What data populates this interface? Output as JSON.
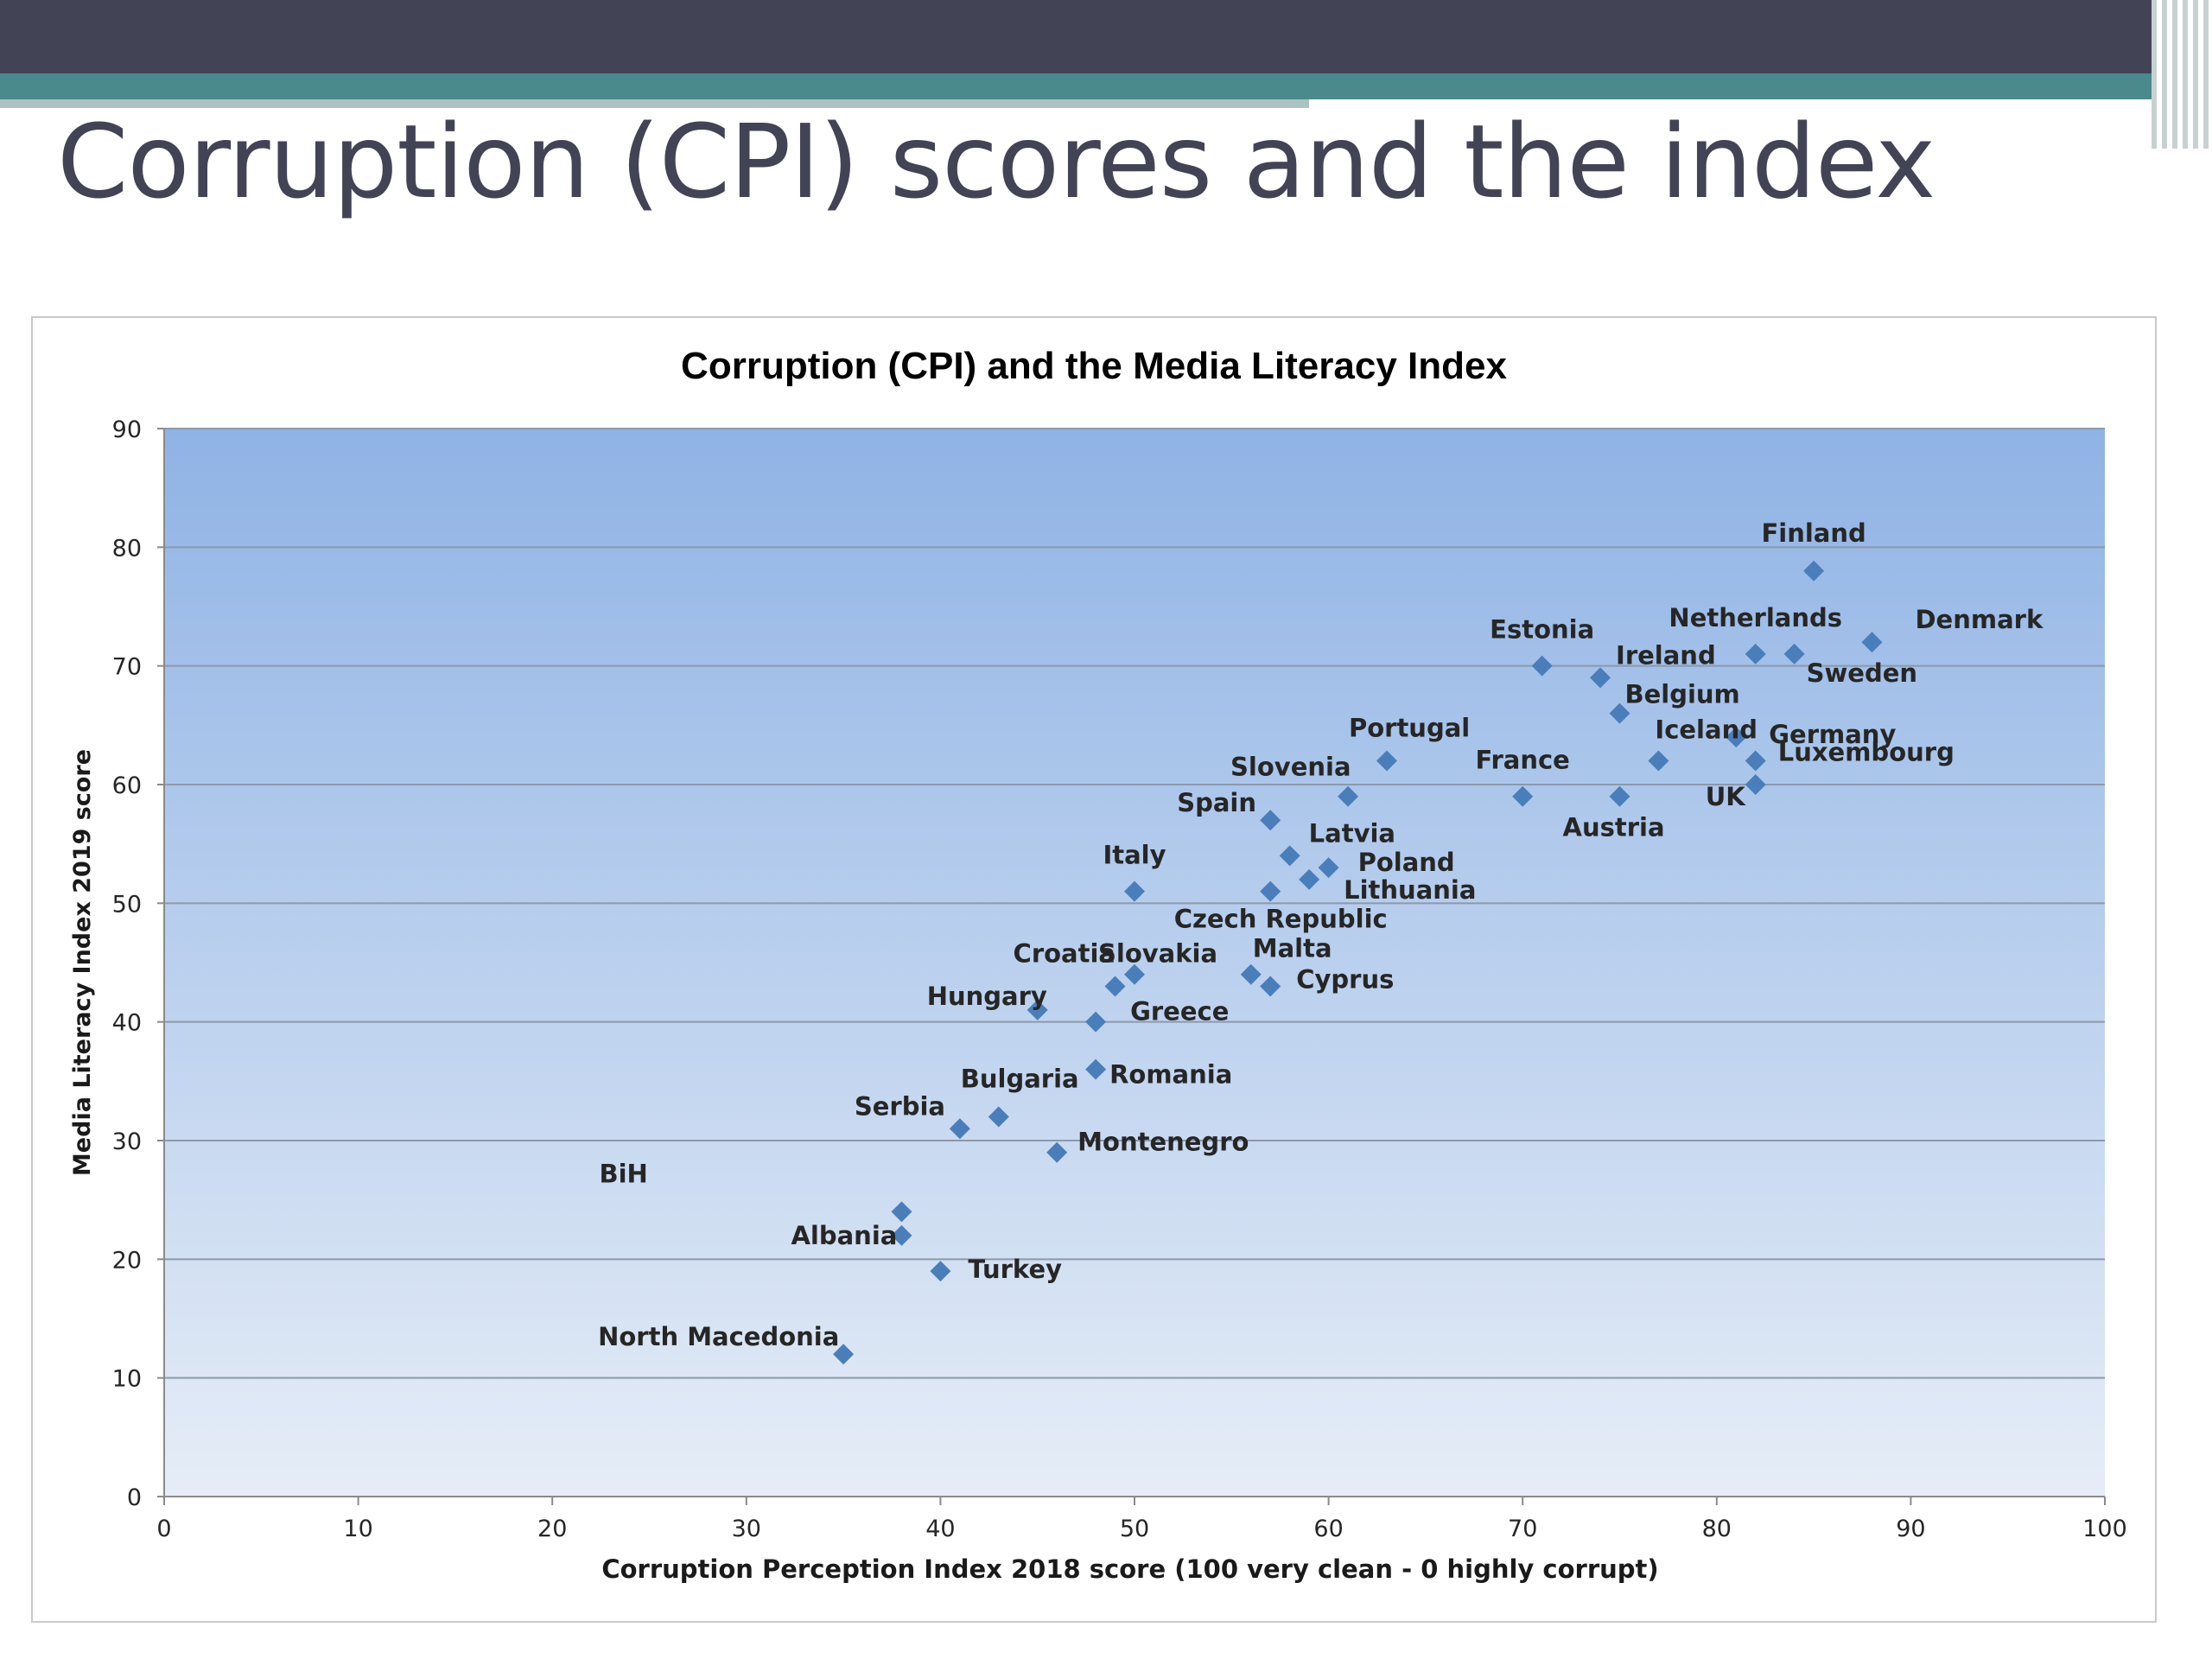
{
  "slide": {
    "title": "Corruption (CPI) scores and the index"
  },
  "chart_data": {
    "type": "scatter",
    "title": "Corruption (CPI) and the Media Literacy Index",
    "xlabel": "Corruption Perception Index 2018 score (100 very clean - 0 highly corrupt)",
    "ylabel": "Media Literacy Index 2019 score",
    "xlim": [
      0,
      100
    ],
    "ylim": [
      0,
      90
    ],
    "xticks": [
      0,
      10,
      20,
      30,
      40,
      50,
      60,
      70,
      80,
      90,
      100
    ],
    "yticks": [
      0,
      10,
      20,
      30,
      40,
      50,
      60,
      70,
      80,
      90
    ],
    "grid": "horizontal",
    "marker": "diamond",
    "marker_color": "#4a7ebb",
    "background_gradient": [
      "#8fb3e5",
      "#e6edf7"
    ],
    "points": [
      {
        "label": "Finland",
        "x": 85,
        "y": 78
      },
      {
        "label": "Denmark",
        "x": 88,
        "y": 72
      },
      {
        "label": "Netherlands",
        "x": 82,
        "y": 71
      },
      {
        "label": "Sweden",
        "x": 84,
        "y": 71
      },
      {
        "label": "Estonia",
        "x": 71,
        "y": 70
      },
      {
        "label": "Ireland",
        "x": 74,
        "y": 69
      },
      {
        "label": "Belgium",
        "x": 75,
        "y": 66
      },
      {
        "label": "Germany",
        "x": 81,
        "y": 64
      },
      {
        "label": "Iceland",
        "x": 77,
        "y": 62
      },
      {
        "label": "Luxembourg",
        "x": 82,
        "y": 62
      },
      {
        "label": "UK",
        "x": 82,
        "y": 60
      },
      {
        "label": "Portugal",
        "x": 63,
        "y": 62
      },
      {
        "label": "France",
        "x": 70,
        "y": 59
      },
      {
        "label": "Austria",
        "x": 75,
        "y": 59
      },
      {
        "label": "Slovenia",
        "x": 61,
        "y": 59
      },
      {
        "label": "Spain",
        "x": 57,
        "y": 57
      },
      {
        "label": "Latvia",
        "x": 58,
        "y": 54
      },
      {
        "label": "Poland",
        "x": 60,
        "y": 53
      },
      {
        "label": "Lithuania",
        "x": 59,
        "y": 52
      },
      {
        "label": "Italy",
        "x": 50,
        "y": 51
      },
      {
        "label": "Czech Republic",
        "x": 57,
        "y": 51
      },
      {
        "label": "Malta",
        "x": 56,
        "y": 44
      },
      {
        "label": "Cyprus",
        "x": 57,
        "y": 43
      },
      {
        "label": "Croatia",
        "x": 49,
        "y": 43
      },
      {
        "label": "Slovakia",
        "x": 50,
        "y": 44
      },
      {
        "label": "Hungary",
        "x": 45,
        "y": 41
      },
      {
        "label": "Greece",
        "x": 48,
        "y": 40
      },
      {
        "label": "Romania",
        "x": 48,
        "y": 36
      },
      {
        "label": "Bulgaria",
        "x": 43,
        "y": 32
      },
      {
        "label": "Serbia",
        "x": 41,
        "y": 31
      },
      {
        "label": "Montenegro",
        "x": 46,
        "y": 29
      },
      {
        "label": "BiH",
        "x": 38,
        "y": 24
      },
      {
        "label": "Albania",
        "x": 38,
        "y": 22
      },
      {
        "label": "Turkey",
        "x": 40,
        "y": 19
      },
      {
        "label": "North Macedonia",
        "x": 35,
        "y": 12
      }
    ]
  }
}
